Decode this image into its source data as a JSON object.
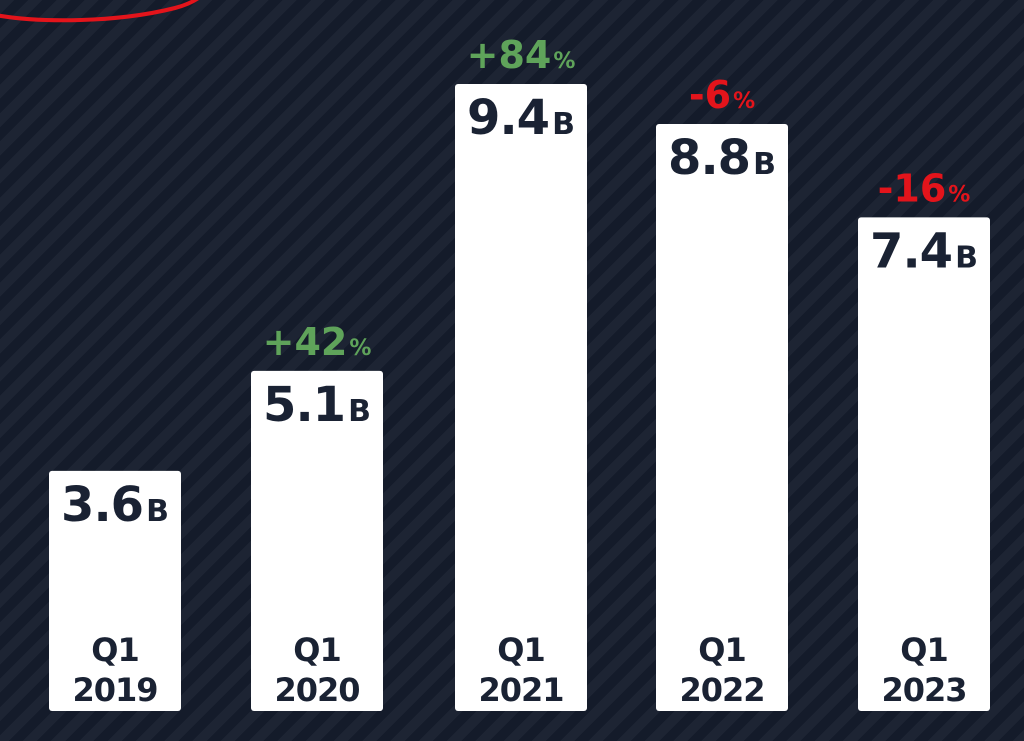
{
  "colors": {
    "background": "#151c2c",
    "bar": "#ffffff",
    "text_dark": "#1a2233",
    "positive": "#5fa35a",
    "negative": "#e3141b",
    "scribble": "#e3141b"
  },
  "chart_data": {
    "type": "bar",
    "categories": [
      [
        "Q1",
        "2019"
      ],
      [
        "Q1",
        "2020"
      ],
      [
        "Q1",
        "2021"
      ],
      [
        "Q1",
        "2022"
      ],
      [
        "Q1",
        "2023"
      ]
    ],
    "values": [
      3.6,
      5.1,
      9.4,
      8.8,
      7.4
    ],
    "value_labels": [
      "3.6",
      "5.1",
      "9.4",
      "8.8",
      "7.4"
    ],
    "value_unit": "B",
    "changes": [
      null,
      "+42",
      "+84",
      "-6",
      "-16"
    ],
    "change_unit": "%",
    "change_sign": [
      null,
      "positive",
      "positive",
      "negative",
      "negative"
    ],
    "grid": false,
    "axes_visible": false,
    "legend": "none"
  }
}
